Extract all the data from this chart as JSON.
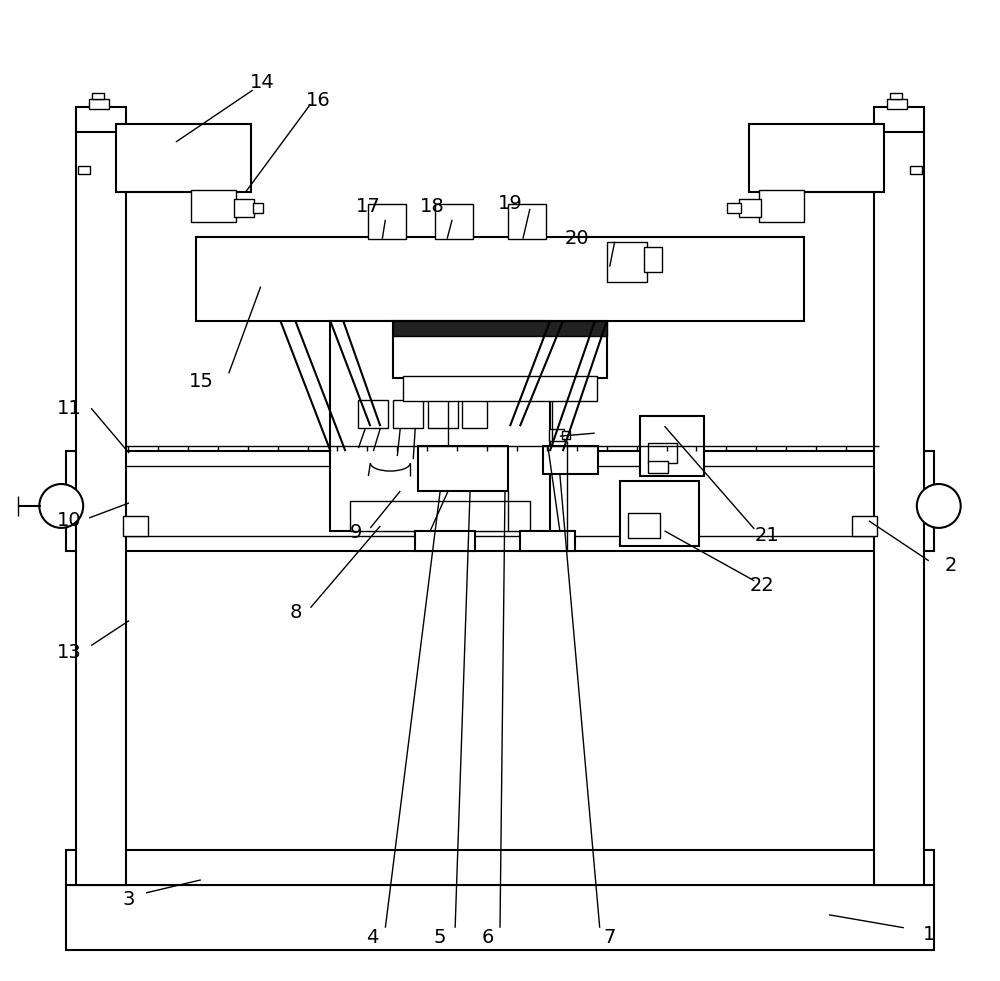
{
  "bg_color": "#ffffff",
  "line_color": "#000000",
  "fig_width": 10.0,
  "fig_height": 9.81
}
